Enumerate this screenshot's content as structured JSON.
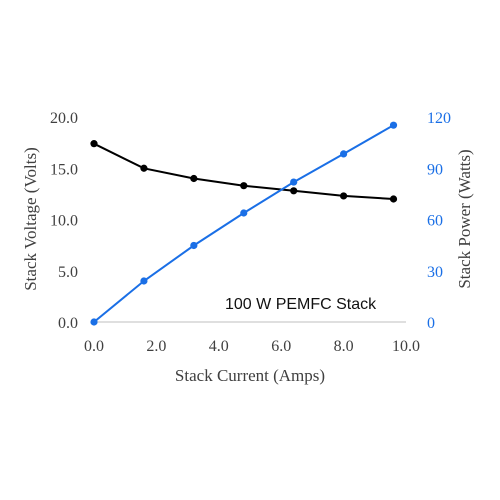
{
  "chart_data": {
    "type": "line",
    "xlabel": "Stack Current (Amps)",
    "ylabel": "Stack Voltage (Volts)",
    "y2label": "Stack Power (Watts)",
    "annotation": "100 W PEMFC Stack",
    "x": [
      0.0,
      1.6,
      3.2,
      4.8,
      6.4,
      8.0,
      9.6
    ],
    "xlim": [
      0,
      10
    ],
    "ylim": [
      0,
      20
    ],
    "y2lim": [
      0,
      120
    ],
    "x_ticks": [
      "0.0",
      "2.0",
      "4.0",
      "6.0",
      "8.0",
      "10.0"
    ],
    "y_ticks": [
      "0.0",
      "5.0",
      "10.0",
      "15.0",
      "20.0"
    ],
    "y2_ticks": [
      "0",
      "30",
      "60",
      "90",
      "120"
    ],
    "grid": false,
    "series": [
      {
        "axis": "left",
        "color": "#000000",
        "values": [
          17.4,
          15.0,
          14.0,
          13.3,
          12.8,
          12.3,
          12.0
        ]
      },
      {
        "axis": "right",
        "color": "#1a6fe6",
        "values": [
          0,
          24,
          44.8,
          63.8,
          81.9,
          98.4,
          115.2
        ]
      }
    ],
    "axis_colors": {
      "left": "#404040",
      "right": "#1a6fe6"
    }
  }
}
